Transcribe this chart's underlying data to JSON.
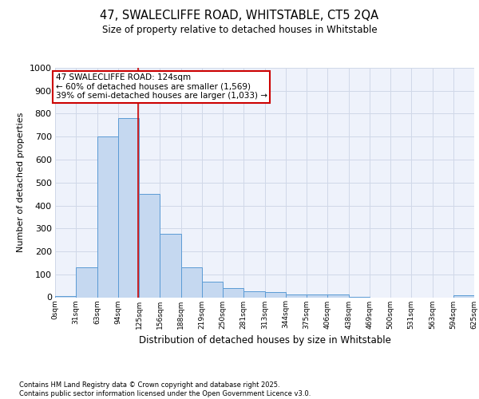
{
  "title_line1": "47, SWALECLIFFE ROAD, WHITSTABLE, CT5 2QA",
  "title_line2": "Size of property relative to detached houses in Whitstable",
  "xlabel": "Distribution of detached houses by size in Whitstable",
  "ylabel": "Number of detached properties",
  "bar_edges": [
    0,
    31,
    63,
    94,
    125,
    156,
    188,
    219,
    250,
    281,
    313,
    344,
    375,
    406,
    438,
    469,
    500,
    531,
    563,
    594,
    625
  ],
  "bar_heights": [
    5,
    130,
    700,
    780,
    450,
    278,
    130,
    68,
    40,
    25,
    22,
    12,
    12,
    12,
    2,
    0,
    0,
    0,
    0,
    8
  ],
  "bar_color": "#c5d8f0",
  "bar_edge_color": "#5b9bd5",
  "vline_x": 124,
  "vline_color": "#cc0000",
  "annotation_line1": "47 SWALECLIFFE ROAD: 124sqm",
  "annotation_line2": "← 60% of detached houses are smaller (1,569)",
  "annotation_line3": "39% of semi-detached houses are larger (1,033) →",
  "annotation_box_color": "#cc0000",
  "ylim": [
    0,
    1000
  ],
  "yticks": [
    0,
    100,
    200,
    300,
    400,
    500,
    600,
    700,
    800,
    900,
    1000
  ],
  "grid_color": "#d0d8e8",
  "bg_color": "#eef2fb",
  "footer_line1": "Contains HM Land Registry data © Crown copyright and database right 2025.",
  "footer_line2": "Contains public sector information licensed under the Open Government Licence v3.0."
}
